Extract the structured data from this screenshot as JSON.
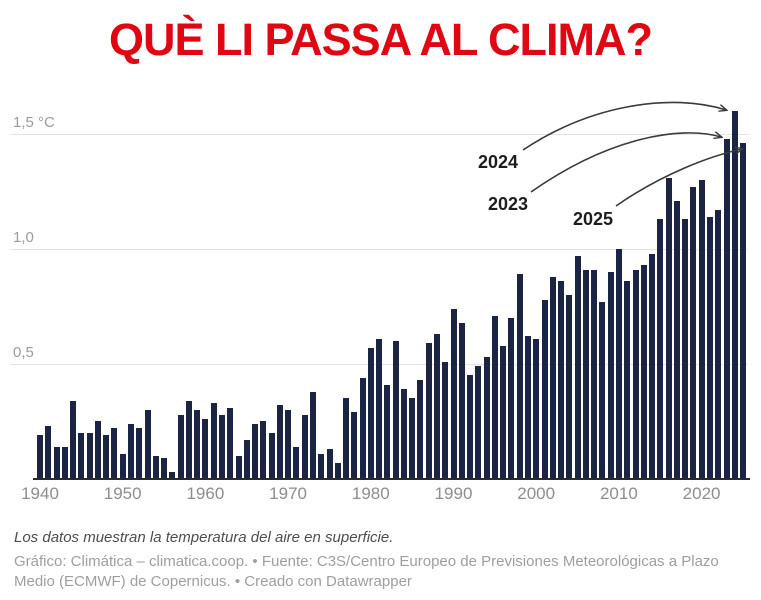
{
  "title": "QUÈ LI PASSA AL CLIMA?",
  "notes": "Los datos muestran la temperatura del aire en superficie.",
  "credit": "Gráfico: Climática – climatica.coop. • Fuente: C3S/Centro Europeo de Previsiones Meteorológicas a Plazo Medio (ECMWF) de Copernicus. • Creado con Datawrapper",
  "colors": {
    "title": "#e00713",
    "bar": "#1b2442",
    "gridline": "#e4e4e4",
    "axis_line": "#2b2b2b",
    "y_label": "#9b9b9b",
    "x_label": "#8d8d8d",
    "annotation": "#1d1d1d",
    "arrow": "#3a3a3a",
    "notes": "#4d4d4d",
    "credit": "#9e9e9e"
  },
  "chart_data": {
    "type": "bar",
    "title": "QUÈ LI PASSA AL CLIMA?",
    "xlabel": "",
    "ylabel": "Temperatura del aire en superficie (°C)",
    "ylim": [
      0,
      1.65
    ],
    "grid": "horizontal",
    "legend": "none",
    "y_ticks": [
      {
        "value": 0.5,
        "label": "0,5"
      },
      {
        "value": 1.0,
        "label": "1,0"
      },
      {
        "value": 1.5,
        "label": "1,5 °C"
      }
    ],
    "x_ticks": [
      1940,
      1950,
      1960,
      1970,
      1980,
      1990,
      2000,
      2010,
      2020
    ],
    "x": [
      1940,
      1941,
      1942,
      1943,
      1944,
      1945,
      1946,
      1947,
      1948,
      1949,
      1950,
      1951,
      1952,
      1953,
      1954,
      1955,
      1956,
      1957,
      1958,
      1959,
      1960,
      1961,
      1962,
      1963,
      1964,
      1965,
      1966,
      1967,
      1968,
      1969,
      1970,
      1971,
      1972,
      1973,
      1974,
      1975,
      1976,
      1977,
      1978,
      1979,
      1980,
      1981,
      1982,
      1983,
      1984,
      1985,
      1986,
      1987,
      1988,
      1989,
      1990,
      1991,
      1992,
      1993,
      1994,
      1995,
      1996,
      1997,
      1998,
      1999,
      2000,
      2001,
      2002,
      2003,
      2004,
      2005,
      2006,
      2007,
      2008,
      2009,
      2010,
      2011,
      2012,
      2013,
      2014,
      2015,
      2016,
      2017,
      2018,
      2019,
      2020,
      2021,
      2022,
      2023,
      2024,
      2025
    ],
    "values": [
      0.19,
      0.23,
      0.14,
      0.14,
      0.34,
      0.2,
      0.2,
      0.25,
      0.19,
      0.22,
      0.11,
      0.24,
      0.22,
      0.3,
      0.1,
      0.09,
      0.03,
      0.28,
      0.34,
      0.3,
      0.26,
      0.33,
      0.28,
      0.31,
      0.1,
      0.17,
      0.24,
      0.25,
      0.2,
      0.32,
      0.3,
      0.14,
      0.28,
      0.38,
      0.11,
      0.13,
      0.07,
      0.35,
      0.29,
      0.44,
      0.57,
      0.61,
      0.41,
      0.6,
      0.39,
      0.35,
      0.43,
      0.59,
      0.63,
      0.51,
      0.74,
      0.68,
      0.45,
      0.49,
      0.53,
      0.71,
      0.58,
      0.7,
      0.89,
      0.62,
      0.61,
      0.78,
      0.88,
      0.86,
      0.8,
      0.97,
      0.91,
      0.91,
      0.77,
      0.9,
      1.0,
      0.86,
      0.91,
      0.93,
      0.98,
      1.13,
      1.31,
      1.21,
      1.13,
      1.27,
      1.3,
      1.14,
      1.17,
      1.48,
      1.6,
      1.46
    ],
    "annotations": [
      {
        "label": "2024",
        "year": 2024,
        "value": 1.6
      },
      {
        "label": "2023",
        "year": 2023,
        "value": 1.48
      },
      {
        "label": "2025",
        "year": 2025,
        "value": 1.46
      }
    ]
  }
}
